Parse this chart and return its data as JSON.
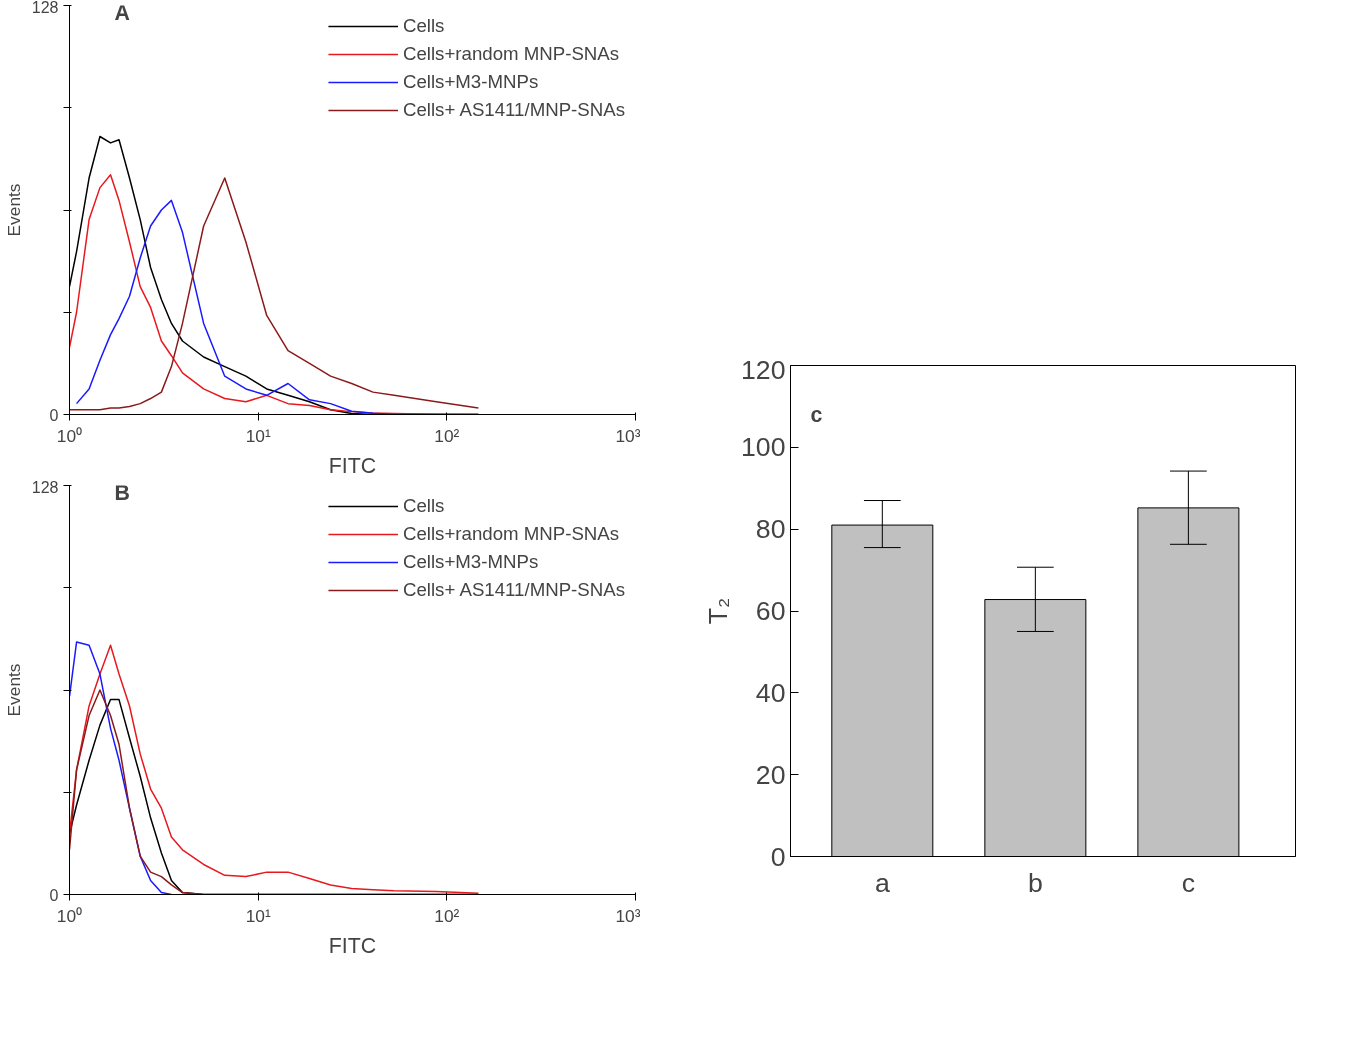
{
  "chart_data": [
    {
      "type": "line",
      "annotations": [
        "A"
      ],
      "xlabel": "FITC",
      "ylabel": "Events",
      "log": "x",
      "legend": "top right",
      "xlim": [
        1,
        1000
      ],
      "xticks": [
        {
          "value": 1,
          "label": "10⁰"
        },
        {
          "value": 10,
          "label": "10¹"
        },
        {
          "value": 100,
          "label": "10²"
        },
        {
          "value": 1000,
          "label": "10³"
        }
      ],
      "ylim": [
        0,
        128
      ],
      "yticks": [
        0,
        {
          "value": 32,
          "label": null
        },
        {
          "value": 64,
          "label": null
        },
        {
          "value": 96,
          "label": null
        },
        128
      ],
      "x": [
        1.0,
        1.09,
        1.27,
        1.45,
        1.65,
        1.83,
        2.08,
        2.37,
        2.69,
        3.07,
        3.47,
        3.97,
        5.14,
        6.65,
        8.61,
        11.1,
        14.4,
        18.7,
        24.2,
        31.3,
        40.6,
        52.5,
        87.9,
        147
      ],
      "series": [
        {
          "name": "Cells",
          "color": "#000000",
          "values": [
            40,
            51,
            74,
            87,
            85,
            86,
            74,
            61,
            46,
            36,
            28.5,
            23,
            18,
            15,
            12,
            8,
            6,
            4,
            1.5,
            0.3,
            0,
            0,
            0,
            0
          ]
        },
        {
          "name": "Cells+random MNP-SNAs",
          "color": "#e8191e",
          "values": [
            21,
            32,
            61,
            71,
            75,
            67,
            54,
            40,
            33.5,
            23,
            18.4,
            13,
            8,
            5,
            4,
            6,
            3.4,
            2.8,
            1.5,
            0.9,
            0.5,
            0.3,
            0.1,
            0
          ]
        },
        {
          "name": "Cells+M3-MNPs",
          "color": "#1a1aff",
          "values": [
            null,
            3.4,
            8,
            17,
            25,
            30,
            37,
            49,
            59,
            64,
            67,
            57,
            28.5,
            12,
            8,
            6,
            9.7,
            4.6,
            3.4,
            1,
            0.4,
            0,
            0,
            0
          ]
        },
        {
          "name": "Cells+ AS1411/MNP-SNAs",
          "color": "#8b1a1a",
          "values": [
            1.5,
            1.5,
            1.5,
            1.5,
            2,
            2,
            2.5,
            3.4,
            5,
            7,
            15,
            28.5,
            59,
            74,
            54,
            31,
            20,
            16,
            12,
            9.7,
            7,
            6,
            4,
            2
          ]
        }
      ]
    },
    {
      "type": "line",
      "annotations": [
        "B"
      ],
      "xlabel": "FITC",
      "ylabel": "Events",
      "log": "x",
      "legend": "top right",
      "xlim": [
        1,
        1000
      ],
      "xticks": [
        {
          "value": 1,
          "label": "10⁰"
        },
        {
          "value": 10,
          "label": "10¹"
        },
        {
          "value": 100,
          "label": "10²"
        },
        {
          "value": 1000,
          "label": "10³"
        }
      ],
      "ylim": [
        0,
        128
      ],
      "yticks": [
        0,
        {
          "value": 32,
          "label": null
        },
        {
          "value": 64,
          "label": null
        },
        {
          "value": 96,
          "label": null
        },
        128
      ],
      "x": [
        1.0,
        1.09,
        1.27,
        1.45,
        1.65,
        1.83,
        2.08,
        2.37,
        2.69,
        3.07,
        3.47,
        3.97,
        5.14,
        6.65,
        8.61,
        11.1,
        14.4,
        18.7,
        24.2,
        31.3,
        40.6,
        52.5,
        87.9,
        147
      ],
      "series": [
        {
          "name": "Cells",
          "color": "#000000",
          "values": [
            19,
            28,
            42,
            53,
            61,
            61,
            49,
            37,
            24,
            13,
            4.4,
            0.6,
            0,
            0,
            0,
            0,
            0,
            0,
            0,
            0,
            0,
            0,
            0,
            0
          ]
        },
        {
          "name": "Cells+random MNP-SNAs",
          "color": "#e8191e",
          "values": [
            19,
            39,
            59,
            69,
            78,
            69,
            59,
            44,
            33,
            27,
            18,
            14,
            9.4,
            6,
            5.6,
            7,
            7,
            5,
            3,
            1.9,
            1.5,
            1.2,
            0.9,
            0.4
          ]
        },
        {
          "name": "Cells+M3-MNPs",
          "color": "#1a1aff",
          "values": [
            62,
            79,
            78,
            69,
            52,
            42,
            27,
            12,
            4.4,
            0.6,
            0,
            null,
            null,
            null,
            null,
            null,
            null,
            null,
            null,
            null,
            null,
            null,
            null,
            null
          ]
        },
        {
          "name": "Cells+ AS1411/MNP-SNAs",
          "color": "#8b1a1a",
          "values": [
            14,
            39,
            56,
            64,
            56,
            47,
            27,
            12,
            7,
            5.6,
            3,
            0.6,
            0,
            0,
            0,
            0,
            0,
            0,
            0,
            0,
            0,
            0,
            0,
            0
          ]
        }
      ]
    },
    {
      "type": "bar",
      "annotations": [
        "c"
      ],
      "ylabel": "T₂",
      "categories": [
        "a",
        "b",
        "c"
      ],
      "ylim": [
        0,
        120
      ],
      "yticks": [
        0,
        20,
        40,
        60,
        80,
        100,
        120
      ],
      "series": [
        {
          "color": "#c0c0c0",
          "values": [
            81,
            62.8,
            85.2
          ],
          "errors": [
            [
              75.5,
              87
            ],
            [
              55,
              70.7
            ],
            [
              76.3,
              94.2
            ]
          ]
        }
      ]
    }
  ]
}
